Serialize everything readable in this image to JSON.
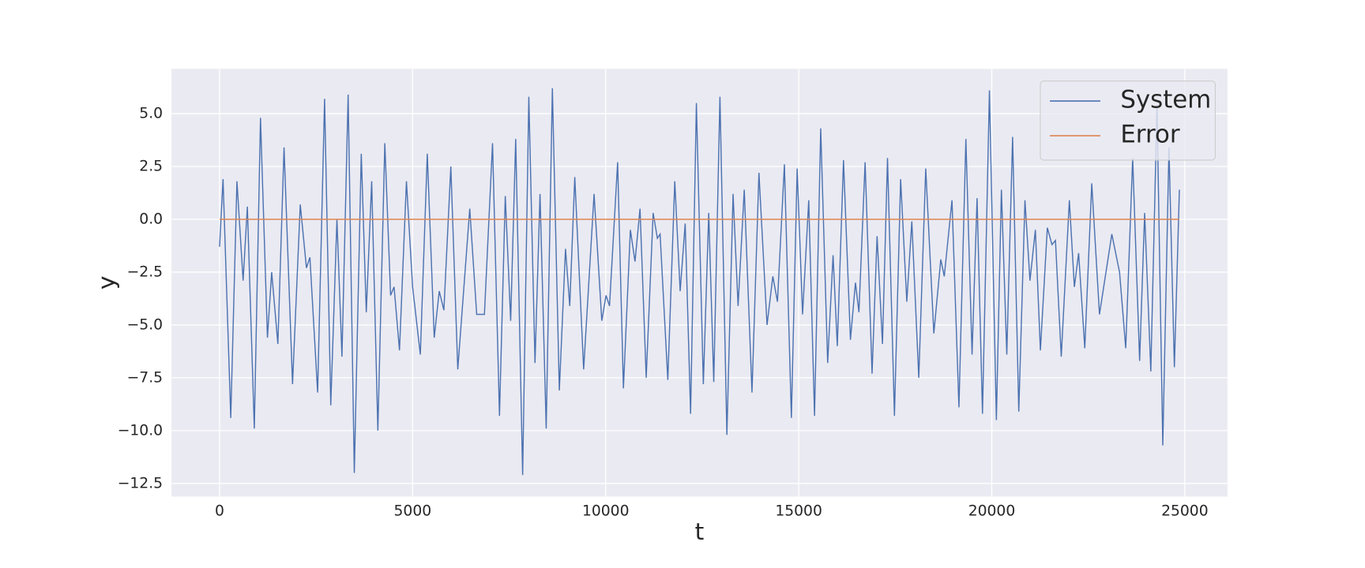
{
  "chart_data": {
    "type": "line",
    "xlabel": "t",
    "ylabel": "y",
    "xlim": [
      -1245,
      26105
    ],
    "ylim": [
      -13.12,
      7.12
    ],
    "xticks": [
      0,
      5000,
      10000,
      15000,
      20000,
      25000
    ],
    "yticks": [
      {
        "value": -12.5,
        "label": "−12.5"
      },
      {
        "value": -10,
        "label": "−10.0"
      },
      {
        "value": -7.5,
        "label": "−7.5"
      },
      {
        "value": -5,
        "label": "−5.0"
      },
      {
        "value": -2.5,
        "label": "−2.5"
      },
      {
        "value": 0,
        "label": "0.0"
      },
      {
        "value": 2.5,
        "label": "2.5"
      },
      {
        "value": 5,
        "label": "5.0"
      }
    ],
    "grid": true,
    "legend": "upper right",
    "series": [
      {
        "name": "System",
        "color": "#4c72b0",
        "x": [
          0,
          90,
          290,
          450,
          610,
          720,
          900,
          1060,
          1240,
          1350,
          1510,
          1670,
          1890,
          2090,
          2250,
          2340,
          2540,
          2720,
          2880,
          3040,
          3170,
          3330,
          3490,
          3670,
          3800,
          3940,
          4100,
          4280,
          4430,
          4520,
          4660,
          4840,
          5000,
          5200,
          5380,
          5560,
          5690,
          5810,
          5990,
          6170,
          6480,
          6660,
          6800,
          6860,
          7070,
          7250,
          7400,
          7540,
          7670,
          7850,
          8010,
          8170,
          8300,
          8460,
          8620,
          8800,
          8960,
          9070,
          9200,
          9430,
          9700,
          9900,
          10010,
          10100,
          10310,
          10460,
          10640,
          10760,
          10890,
          11050,
          11230,
          11340,
          11410,
          11610,
          11790,
          11930,
          12060,
          12200,
          12350,
          12530,
          12670,
          12800,
          12960,
          13140,
          13300,
          13430,
          13590,
          13790,
          13970,
          14180,
          14330,
          14450,
          14630,
          14810,
          14960,
          15100,
          15260,
          15410,
          15570,
          15750,
          15890,
          16000,
          16160,
          16340,
          16470,
          16560,
          16720,
          16900,
          17030,
          17170,
          17300,
          17480,
          17640,
          17800,
          17930,
          18110,
          18290,
          18500,
          18680,
          18770,
          18970,
          19150,
          19330,
          19490,
          19620,
          19760,
          19940,
          20120,
          20250,
          20390,
          20540,
          20700,
          20860,
          20990,
          21130,
          21260,
          21440,
          21560,
          21650,
          21800,
          22010,
          22140,
          22250,
          22410,
          22590,
          22790,
          23110,
          23310,
          23470,
          23650,
          23830,
          23960,
          24120,
          24280,
          24430,
          24590,
          24730,
          24860
        ],
        "values": [
          -1.3,
          1.9,
          -9.4,
          1.8,
          -2.9,
          0.6,
          -9.9,
          4.8,
          -5.6,
          -2.5,
          -5.9,
          3.4,
          -7.8,
          0.7,
          -2.3,
          -1.8,
          -8.2,
          5.7,
          -8.8,
          0.0,
          -6.5,
          5.9,
          -12.0,
          3.1,
          -4.4,
          1.8,
          -10.0,
          3.6,
          -3.6,
          -3.2,
          -6.2,
          1.8,
          -3.2,
          -6.4,
          3.1,
          -5.6,
          -3.4,
          -4.3,
          2.5,
          -7.1,
          0.5,
          -4.5,
          -4.5,
          -4.5,
          3.6,
          -9.3,
          1.1,
          -4.8,
          3.8,
          -12.1,
          5.8,
          -6.8,
          1.2,
          -9.9,
          6.2,
          -8.1,
          -1.4,
          -4.1,
          2.0,
          -7.1,
          1.2,
          -4.8,
          -3.6,
          -4.1,
          2.7,
          -8.0,
          -0.5,
          -2.0,
          0.5,
          -7.5,
          0.3,
          -0.9,
          -0.7,
          -7.6,
          1.8,
          -3.4,
          -0.2,
          -9.2,
          5.5,
          -7.8,
          0.3,
          -7.7,
          5.8,
          -10.2,
          1.2,
          -4.1,
          1.4,
          -8.2,
          2.2,
          -5.0,
          -2.7,
          -3.9,
          2.6,
          -9.4,
          2.4,
          -4.5,
          0.9,
          -9.3,
          4.3,
          -6.8,
          -1.7,
          -6.0,
          2.8,
          -5.7,
          -3.0,
          -4.4,
          2.7,
          -7.3,
          -0.8,
          -5.9,
          2.9,
          -9.3,
          1.9,
          -3.9,
          -0.1,
          -7.5,
          2.4,
          -5.4,
          -1.9,
          -2.7,
          0.9,
          -8.9,
          3.8,
          -6.4,
          1.0,
          -9.2,
          6.1,
          -9.5,
          1.4,
          -6.4,
          3.9,
          -9.1,
          0.9,
          -2.9,
          -0.5,
          -6.2,
          -0.4,
          -1.2,
          -1.0,
          -6.5,
          0.9,
          -3.2,
          -1.6,
          -6.1,
          1.7,
          -4.5,
          -0.7,
          -2.5,
          -6.1,
          2.9,
          -6.7,
          0.3,
          -7.2,
          5.4,
          -10.7,
          3.4,
          -7.0,
          1.4
        ]
      },
      {
        "name": "Error",
        "color": "#dd8452",
        "x": [
          0,
          24860
        ],
        "values": [
          0,
          0
        ]
      }
    ]
  }
}
